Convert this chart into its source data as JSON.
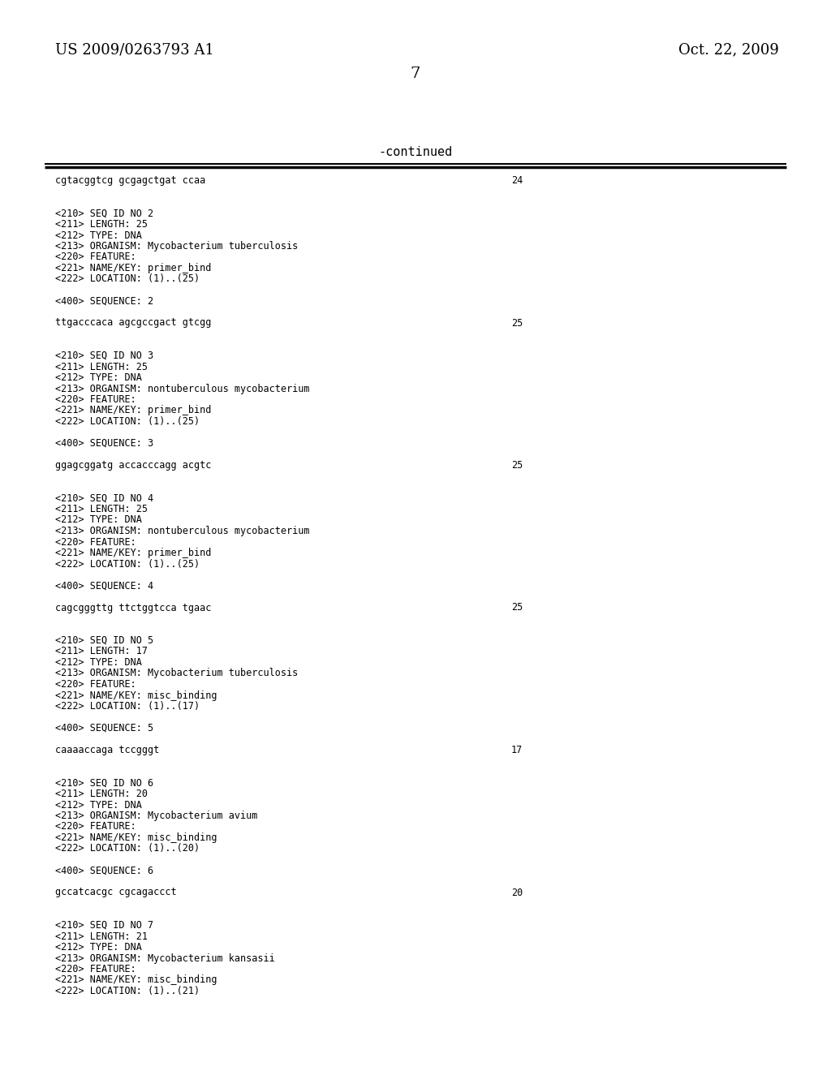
{
  "header_left": "US 2009/0263793 A1",
  "header_right": "Oct. 22, 2009",
  "page_number": "7",
  "continued_label": "-continued",
  "background_color": "#ffffff",
  "text_color": "#000000",
  "header_font_size": 13,
  "page_num_font_size": 14,
  "continued_font_size": 11,
  "mono_font_size": 8.5,
  "content": [
    {
      "type": "seq_line",
      "text": "cgtacggtcg gcgagctgat ccaa",
      "num": "24"
    },
    {
      "type": "blank"
    },
    {
      "type": "blank"
    },
    {
      "type": "meta",
      "text": "<210> SEQ ID NO 2"
    },
    {
      "type": "meta",
      "text": "<211> LENGTH: 25"
    },
    {
      "type": "meta",
      "text": "<212> TYPE: DNA"
    },
    {
      "type": "meta",
      "text": "<213> ORGANISM: Mycobacterium tuberculosis"
    },
    {
      "type": "meta",
      "text": "<220> FEATURE:"
    },
    {
      "type": "meta",
      "text": "<221> NAME/KEY: primer_bind"
    },
    {
      "type": "meta",
      "text": "<222> LOCATION: (1)..(25)"
    },
    {
      "type": "blank"
    },
    {
      "type": "meta",
      "text": "<400> SEQUENCE: 2"
    },
    {
      "type": "blank"
    },
    {
      "type": "seq_line",
      "text": "ttgacccaca agcgccgact gtcgg",
      "num": "25"
    },
    {
      "type": "blank"
    },
    {
      "type": "blank"
    },
    {
      "type": "meta",
      "text": "<210> SEQ ID NO 3"
    },
    {
      "type": "meta",
      "text": "<211> LENGTH: 25"
    },
    {
      "type": "meta",
      "text": "<212> TYPE: DNA"
    },
    {
      "type": "meta",
      "text": "<213> ORGANISM: nontuberculous mycobacterium"
    },
    {
      "type": "meta",
      "text": "<220> FEATURE:"
    },
    {
      "type": "meta",
      "text": "<221> NAME/KEY: primer_bind"
    },
    {
      "type": "meta",
      "text": "<222> LOCATION: (1)..(25)"
    },
    {
      "type": "blank"
    },
    {
      "type": "meta",
      "text": "<400> SEQUENCE: 3"
    },
    {
      "type": "blank"
    },
    {
      "type": "seq_line",
      "text": "ggagcggatg accacccagg acgtc",
      "num": "25"
    },
    {
      "type": "blank"
    },
    {
      "type": "blank"
    },
    {
      "type": "meta",
      "text": "<210> SEQ ID NO 4"
    },
    {
      "type": "meta",
      "text": "<211> LENGTH: 25"
    },
    {
      "type": "meta",
      "text": "<212> TYPE: DNA"
    },
    {
      "type": "meta",
      "text": "<213> ORGANISM: nontuberculous mycobacterium"
    },
    {
      "type": "meta",
      "text": "<220> FEATURE:"
    },
    {
      "type": "meta",
      "text": "<221> NAME/KEY: primer_bind"
    },
    {
      "type": "meta",
      "text": "<222> LOCATION: (1)..(25)"
    },
    {
      "type": "blank"
    },
    {
      "type": "meta",
      "text": "<400> SEQUENCE: 4"
    },
    {
      "type": "blank"
    },
    {
      "type": "seq_line",
      "text": "cagcgggttg ttctggtcca tgaac",
      "num": "25"
    },
    {
      "type": "blank"
    },
    {
      "type": "blank"
    },
    {
      "type": "meta",
      "text": "<210> SEQ ID NO 5"
    },
    {
      "type": "meta",
      "text": "<211> LENGTH: 17"
    },
    {
      "type": "meta",
      "text": "<212> TYPE: DNA"
    },
    {
      "type": "meta",
      "text": "<213> ORGANISM: Mycobacterium tuberculosis"
    },
    {
      "type": "meta",
      "text": "<220> FEATURE:"
    },
    {
      "type": "meta",
      "text": "<221> NAME/KEY: misc_binding"
    },
    {
      "type": "meta",
      "text": "<222> LOCATION: (1)..(17)"
    },
    {
      "type": "blank"
    },
    {
      "type": "meta",
      "text": "<400> SEQUENCE: 5"
    },
    {
      "type": "blank"
    },
    {
      "type": "seq_line",
      "text": "caaaaccaga tccgggt",
      "num": "17"
    },
    {
      "type": "blank"
    },
    {
      "type": "blank"
    },
    {
      "type": "meta",
      "text": "<210> SEQ ID NO 6"
    },
    {
      "type": "meta",
      "text": "<211> LENGTH: 20"
    },
    {
      "type": "meta",
      "text": "<212> TYPE: DNA"
    },
    {
      "type": "meta",
      "text": "<213> ORGANISM: Mycobacterium avium"
    },
    {
      "type": "meta",
      "text": "<220> FEATURE:"
    },
    {
      "type": "meta",
      "text": "<221> NAME/KEY: misc_binding"
    },
    {
      "type": "meta",
      "text": "<222> LOCATION: (1)..(20)"
    },
    {
      "type": "blank"
    },
    {
      "type": "meta",
      "text": "<400> SEQUENCE: 6"
    },
    {
      "type": "blank"
    },
    {
      "type": "seq_line",
      "text": "gccatcacgc cgcagaccct",
      "num": "20"
    },
    {
      "type": "blank"
    },
    {
      "type": "blank"
    },
    {
      "type": "meta",
      "text": "<210> SEQ ID NO 7"
    },
    {
      "type": "meta",
      "text": "<211> LENGTH: 21"
    },
    {
      "type": "meta",
      "text": "<212> TYPE: DNA"
    },
    {
      "type": "meta",
      "text": "<213> ORGANISM: Mycobacterium kansasii"
    },
    {
      "type": "meta",
      "text": "<220> FEATURE:"
    },
    {
      "type": "meta",
      "text": "<221> NAME/KEY: misc_binding"
    },
    {
      "type": "meta",
      "text": "<222> LOCATION: (1)..(21)"
    }
  ]
}
